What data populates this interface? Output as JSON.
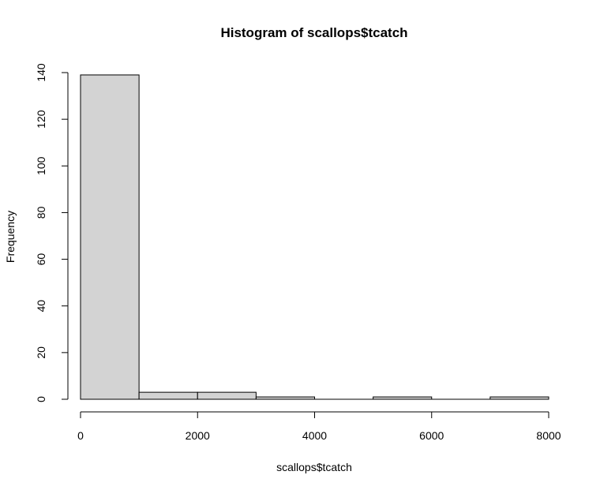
{
  "chart_data": {
    "type": "bar",
    "title": "Histogram of scallops$tcatch",
    "xlabel": "scallops$tcatch",
    "ylabel": "Frequency",
    "bins": [
      {
        "from": 0,
        "to": 1000,
        "count": 139
      },
      {
        "from": 1000,
        "to": 2000,
        "count": 3
      },
      {
        "from": 2000,
        "to": 3000,
        "count": 3
      },
      {
        "from": 3000,
        "to": 4000,
        "count": 1
      },
      {
        "from": 4000,
        "to": 5000,
        "count": 0
      },
      {
        "from": 5000,
        "to": 6000,
        "count": 1
      },
      {
        "from": 6000,
        "to": 7000,
        "count": 0
      },
      {
        "from": 7000,
        "to": 8000,
        "count": 1
      }
    ],
    "xlim": [
      0,
      8000
    ],
    "ylim": [
      0,
      140
    ],
    "x_ticks": [
      0,
      2000,
      4000,
      6000,
      8000
    ],
    "y_ticks": [
      0,
      20,
      40,
      60,
      80,
      100,
      120,
      140
    ],
    "bar_fill": "#d3d3d3",
    "bar_stroke": "#000000",
    "grid": false
  }
}
